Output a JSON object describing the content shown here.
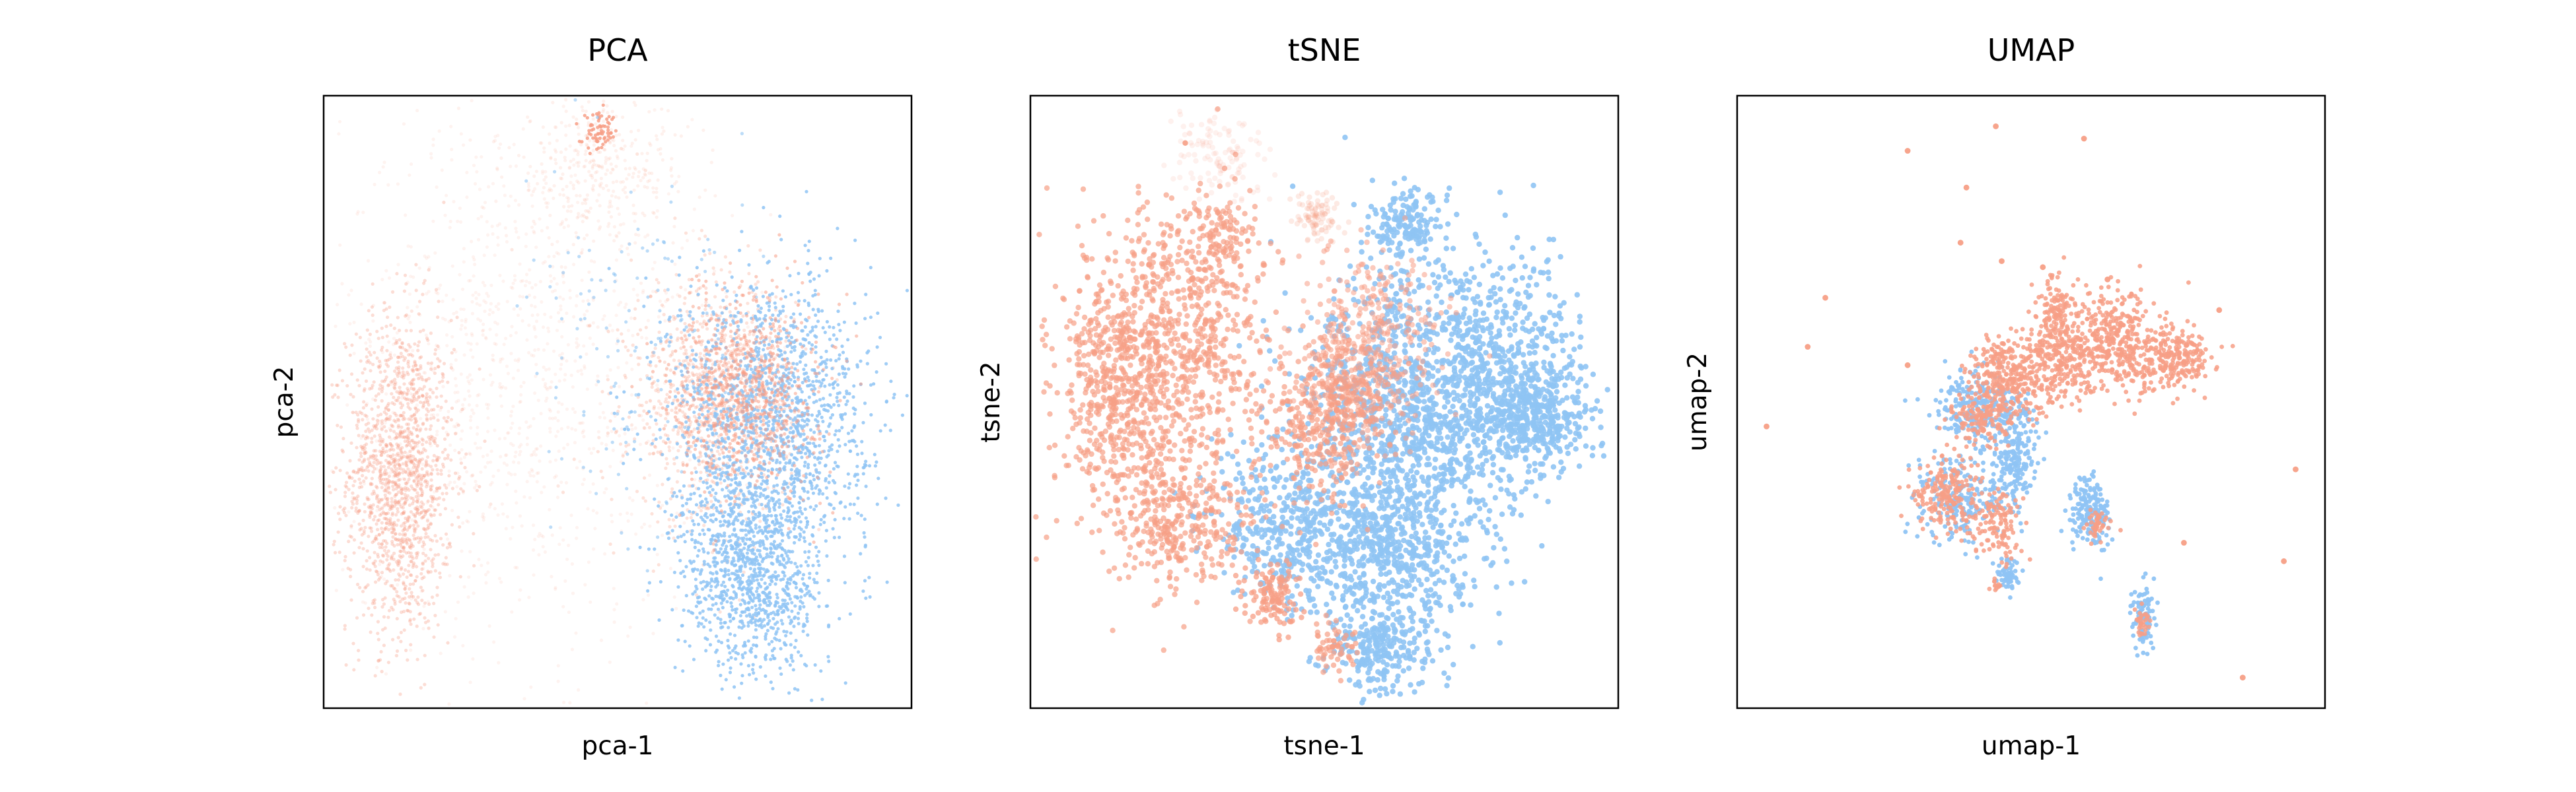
{
  "colors": {
    "salmon": "#f79f86",
    "blue": "#8fc4f4",
    "frame": "#000000",
    "background": "#ffffff"
  },
  "chart_data": [
    {
      "type": "scatter",
      "title": "PCA",
      "xlabel": "pca-1",
      "ylabel": "pca-2",
      "xlim": [
        0,
        1
      ],
      "ylim": [
        0,
        1
      ],
      "xticks": [],
      "yticks": [],
      "grid": false,
      "legend": "none",
      "series": [
        {
          "color": "#f79f86",
          "clusters": [
            {
              "cx": 0.13,
              "cy": 0.38,
              "sx": 0.045,
              "sy": 0.13,
              "n": 1500,
              "alpha": 0.35
            },
            {
              "cx": 0.33,
              "cy": 0.55,
              "sx": 0.15,
              "sy": 0.22,
              "n": 1100,
              "alpha": 0.12
            },
            {
              "cx": 0.47,
              "cy": 0.88,
              "sx": 0.08,
              "sy": 0.06,
              "n": 350,
              "alpha": 0.15
            },
            {
              "cx": 0.47,
              "cy": 0.94,
              "sx": 0.015,
              "sy": 0.015,
              "n": 70,
              "alpha": 0.85
            },
            {
              "cx": 0.66,
              "cy": 0.5,
              "sx": 0.07,
              "sy": 0.1,
              "n": 900,
              "alpha": 0.3
            }
          ]
        },
        {
          "color": "#8fc4f4",
          "clusters": [
            {
              "cx": 0.76,
              "cy": 0.48,
              "sx": 0.085,
              "sy": 0.11,
              "n": 1500,
              "alpha": 0.85
            },
            {
              "cx": 0.73,
              "cy": 0.22,
              "sx": 0.06,
              "sy": 0.085,
              "n": 1100,
              "alpha": 0.85
            },
            {
              "cx": 0.55,
              "cy": 0.55,
              "sx": 0.1,
              "sy": 0.14,
              "n": 150,
              "alpha": 0.6
            }
          ]
        },
        {
          "color": "#f79f86",
          "clusters": [
            {
              "cx": 0.72,
              "cy": 0.52,
              "sx": 0.06,
              "sy": 0.08,
              "n": 800,
              "alpha": 0.55
            }
          ]
        }
      ]
    },
    {
      "type": "scatter",
      "title": "tSNE",
      "xlabel": "tsne-1",
      "ylabel": "tsne-2",
      "xlim": [
        0,
        1
      ],
      "ylim": [
        0,
        1
      ],
      "xticks": [],
      "yticks": [],
      "grid": false,
      "legend": "none",
      "series": [
        {
          "color": "#8fc4f4",
          "clusters": [
            {
              "cx": 0.64,
              "cy": 0.47,
              "sx": 0.09,
              "sy": 0.12,
              "n": 1100,
              "alpha": 0.9
            },
            {
              "cx": 0.8,
              "cy": 0.56,
              "sx": 0.07,
              "sy": 0.09,
              "n": 550,
              "alpha": 0.9
            },
            {
              "cx": 0.86,
              "cy": 0.47,
              "sx": 0.045,
              "sy": 0.04,
              "n": 350,
              "alpha": 0.9
            },
            {
              "cx": 0.6,
              "cy": 0.26,
              "sx": 0.08,
              "sy": 0.08,
              "n": 650,
              "alpha": 0.9
            },
            {
              "cx": 0.6,
              "cy": 0.09,
              "sx": 0.045,
              "sy": 0.035,
              "n": 220,
              "alpha": 0.9
            },
            {
              "cx": 0.64,
              "cy": 0.79,
              "sx": 0.03,
              "sy": 0.025,
              "n": 160,
              "alpha": 0.9
            },
            {
              "cx": 0.42,
              "cy": 0.3,
              "sx": 0.06,
              "sy": 0.07,
              "n": 300,
              "alpha": 0.9
            }
          ]
        },
        {
          "color": "#f79f86",
          "clusters": [
            {
              "cx": 0.15,
              "cy": 0.52,
              "sx": 0.055,
              "sy": 0.1,
              "n": 600,
              "alpha": 0.7
            },
            {
              "cx": 0.27,
              "cy": 0.62,
              "sx": 0.07,
              "sy": 0.11,
              "n": 650,
              "alpha": 0.7
            },
            {
              "cx": 0.25,
              "cy": 0.3,
              "sx": 0.06,
              "sy": 0.06,
              "n": 350,
              "alpha": 0.7
            },
            {
              "cx": 0.41,
              "cy": 0.18,
              "sx": 0.025,
              "sy": 0.03,
              "n": 120,
              "alpha": 0.75
            },
            {
              "cx": 0.5,
              "cy": 0.45,
              "sx": 0.05,
              "sy": 0.06,
              "n": 300,
              "alpha": 0.7
            },
            {
              "cx": 0.58,
              "cy": 0.6,
              "sx": 0.06,
              "sy": 0.08,
              "n": 350,
              "alpha": 0.55
            },
            {
              "cx": 0.52,
              "cy": 0.1,
              "sx": 0.025,
              "sy": 0.02,
              "n": 60,
              "alpha": 0.7
            },
            {
              "cx": 0.33,
              "cy": 0.78,
              "sx": 0.03,
              "sy": 0.03,
              "n": 80,
              "alpha": 0.7
            },
            {
              "cx": 0.32,
              "cy": 0.9,
              "sx": 0.04,
              "sy": 0.035,
              "n": 120,
              "alpha": 0.14
            },
            {
              "cx": 0.49,
              "cy": 0.8,
              "sx": 0.02,
              "sy": 0.018,
              "n": 90,
              "alpha": 0.22
            },
            {
              "cx": 0.54,
              "cy": 0.52,
              "sx": 0.04,
              "sy": 0.05,
              "n": 200,
              "alpha": 0.6
            }
          ]
        }
      ]
    },
    {
      "type": "scatter",
      "title": "UMAP",
      "xlabel": "umap-1",
      "ylabel": "umap-2",
      "xlim": [
        0,
        1
      ],
      "ylim": [
        0,
        1
      ],
      "xticks": [],
      "yticks": [],
      "grid": false,
      "legend": "none",
      "series": [
        {
          "color": "#8fc4f4",
          "clusters": [
            {
              "cx": 0.41,
              "cy": 0.49,
              "sx": 0.035,
              "sy": 0.03,
              "n": 260,
              "alpha": 0.95
            },
            {
              "cx": 0.47,
              "cy": 0.42,
              "sx": 0.02,
              "sy": 0.045,
              "n": 220,
              "alpha": 0.95
            },
            {
              "cx": 0.38,
              "cy": 0.34,
              "sx": 0.035,
              "sy": 0.035,
              "n": 220,
              "alpha": 0.95
            },
            {
              "cx": 0.6,
              "cy": 0.32,
              "sx": 0.018,
              "sy": 0.03,
              "n": 180,
              "alpha": 0.95
            },
            {
              "cx": 0.69,
              "cy": 0.15,
              "sx": 0.01,
              "sy": 0.025,
              "n": 90,
              "alpha": 0.95
            },
            {
              "cx": 0.46,
              "cy": 0.22,
              "sx": 0.01,
              "sy": 0.015,
              "n": 60,
              "alpha": 0.95
            }
          ]
        },
        {
          "color": "#f79f86",
          "clusters": [
            {
              "cx": 0.46,
              "cy": 0.54,
              "sx": 0.035,
              "sy": 0.035,
              "n": 320,
              "alpha": 0.85
            },
            {
              "cx": 0.56,
              "cy": 0.58,
              "sx": 0.035,
              "sy": 0.04,
              "n": 320,
              "alpha": 0.85
            },
            {
              "cx": 0.65,
              "cy": 0.6,
              "sx": 0.035,
              "sy": 0.04,
              "n": 320,
              "alpha": 0.85
            },
            {
              "cx": 0.74,
              "cy": 0.57,
              "sx": 0.03,
              "sy": 0.025,
              "n": 240,
              "alpha": 0.85
            },
            {
              "cx": 0.54,
              "cy": 0.66,
              "sx": 0.012,
              "sy": 0.03,
              "n": 80,
              "alpha": 0.85
            },
            {
              "cx": 0.36,
              "cy": 0.35,
              "sx": 0.03,
              "sy": 0.03,
              "n": 200,
              "alpha": 0.85
            },
            {
              "cx": 0.44,
              "cy": 0.3,
              "sx": 0.02,
              "sy": 0.03,
              "n": 120,
              "alpha": 0.85
            },
            {
              "cx": 0.41,
              "cy": 0.47,
              "sx": 0.025,
              "sy": 0.025,
              "n": 120,
              "alpha": 0.85
            },
            {
              "cx": 0.61,
              "cy": 0.3,
              "sx": 0.01,
              "sy": 0.015,
              "n": 40,
              "alpha": 0.85
            },
            {
              "cx": 0.69,
              "cy": 0.14,
              "sx": 0.006,
              "sy": 0.012,
              "n": 30,
              "alpha": 0.85
            },
            {
              "cx": 0.44,
              "cy": 0.2,
              "sx": 0.005,
              "sy": 0.005,
              "n": 12,
              "alpha": 0.85
            }
          ],
          "outliers": [
            [
              0.44,
              0.95
            ],
            [
              0.29,
              0.91
            ],
            [
              0.59,
              0.93
            ],
            [
              0.39,
              0.85
            ],
            [
              0.15,
              0.67
            ],
            [
              0.82,
              0.65
            ],
            [
              0.12,
              0.59
            ],
            [
              0.05,
              0.46
            ],
            [
              0.95,
              0.39
            ],
            [
              0.93,
              0.24
            ],
            [
              0.76,
              0.27
            ],
            [
              0.86,
              0.05
            ],
            [
              0.38,
              0.76
            ],
            [
              0.45,
              0.73
            ],
            [
              0.29,
              0.56
            ],
            [
              0.52,
              0.72
            ],
            [
              0.63,
              0.7
            ]
          ]
        }
      ]
    }
  ]
}
